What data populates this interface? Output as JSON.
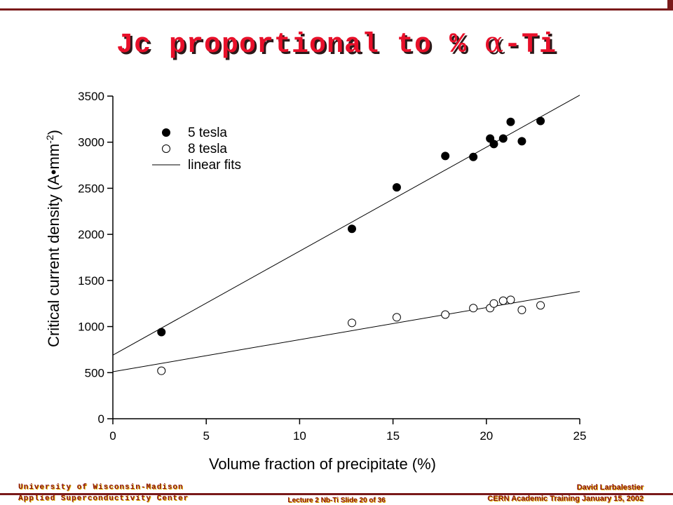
{
  "slide": {
    "title_prefix": "Jc proportional to % ",
    "title_greek": "α",
    "title_suffix": "-Ti"
  },
  "footer": {
    "left_line1": "University of Wisconsin-Madison",
    "left_line2": "Applied Superconductivity Center",
    "right_line1": "David Larbalestier",
    "right_line2": "CERN Academic Training January 15, 2002",
    "center": "Lecture 2 Nb-Ti Slide 20 of 36"
  },
  "colors": {
    "title": "#e8102a",
    "footer_text": "#8b1414",
    "rule": "#7a1a1a"
  },
  "chart_data": {
    "type": "scatter",
    "xlabel": "Volume fraction of precipitate (%)",
    "ylabel": "Critical current density (A•mm-2)",
    "xlim": [
      0,
      25
    ],
    "ylim": [
      0,
      3500
    ],
    "xticks": [
      0,
      5,
      10,
      15,
      20,
      25
    ],
    "yticks": [
      0,
      500,
      1000,
      1500,
      2000,
      2500,
      3000,
      3500
    ],
    "legend_position": "top-left",
    "series": [
      {
        "name": "5 tesla",
        "marker": "filled-circle",
        "x": [
          2.6,
          12.8,
          15.2,
          17.8,
          19.3,
          20.2,
          20.4,
          20.9,
          21.3,
          21.9,
          22.9
        ],
        "y": [
          940,
          2060,
          2510,
          2850,
          2840,
          3040,
          2980,
          3040,
          3220,
          3010,
          3230
        ],
        "fit": {
          "x": [
            0,
            25
          ],
          "y": [
            690,
            3510
          ]
        }
      },
      {
        "name": "8 tesla",
        "marker": "open-circle",
        "x": [
          2.6,
          12.8,
          15.2,
          17.8,
          19.3,
          20.2,
          20.4,
          20.9,
          21.3,
          21.9,
          22.9
        ],
        "y": [
          520,
          1040,
          1100,
          1130,
          1200,
          1200,
          1250,
          1280,
          1290,
          1180,
          1230
        ],
        "fit": {
          "x": [
            0,
            25
          ],
          "y": [
            510,
            1380
          ]
        }
      }
    ],
    "fit_label": "linear fits"
  }
}
